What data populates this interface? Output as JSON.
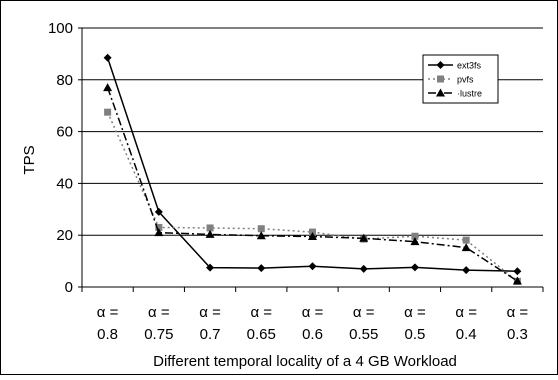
{
  "chart_data": {
    "type": "line",
    "categories": [
      "α =\n0.8",
      "α =\n0.75",
      "α =\n0.7",
      "α =\n0.65",
      "α =\n0.6",
      "α =\n0.55",
      "α =\n0.5",
      "α =\n0.4",
      "α =\n0.3"
    ],
    "series": [
      {
        "name": "ext3fs",
        "values": [
          88.5,
          29,
          7.5,
          7.3,
          8,
          7,
          7.6,
          6.5,
          6.1
        ],
        "color": "#000000",
        "marker": "diamond",
        "dash": "solid"
      },
      {
        "name": "pvfs",
        "values": [
          67.5,
          23,
          22.8,
          22.5,
          21.2,
          18.5,
          19.6,
          18.1,
          2.2
        ],
        "color": "#808080",
        "marker": "square",
        "dash": "dotted"
      },
      {
        "name": "·lustre",
        "values": [
          77,
          21,
          20.3,
          19.8,
          19.5,
          18.8,
          17.5,
          15.2,
          2.3
        ],
        "color": "#000000",
        "marker": "triangle",
        "dash": "dashdot"
      }
    ],
    "title": "",
    "xlabel": "Different temporal locality of a 4 GB Workload",
    "ylabel": "TPS",
    "ylim": [
      0,
      100
    ],
    "yticks": [
      0,
      20,
      40,
      60,
      80,
      100
    ],
    "grid": true,
    "legend": "top-right"
  }
}
